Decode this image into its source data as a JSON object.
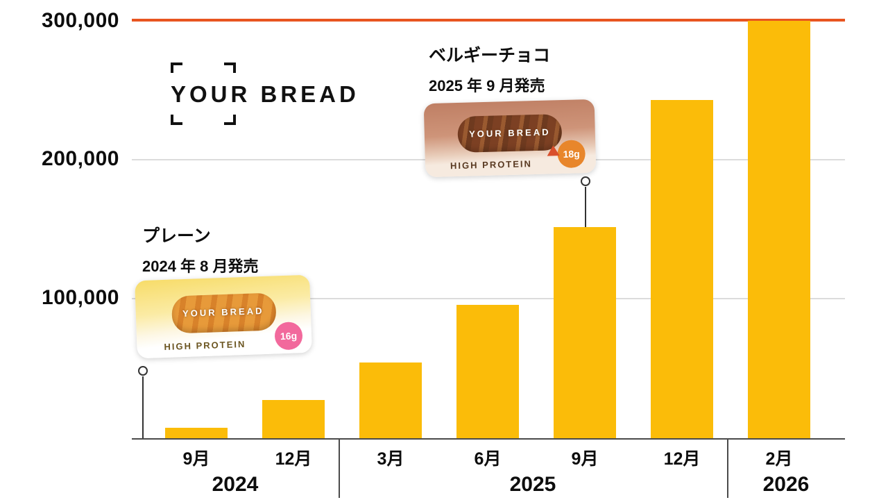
{
  "chart_data": {
    "type": "bar",
    "title": "",
    "xlabel": "",
    "ylabel": "",
    "categories": [
      "9月",
      "12月",
      "3月",
      "6月",
      "9月",
      "12月",
      "2月"
    ],
    "values": [
      8000,
      28000,
      55000,
      96000,
      152000,
      243000,
      300000
    ],
    "ylim": [
      0,
      300000
    ],
    "yticks": [
      100000,
      200000,
      300000
    ],
    "ytick_labels": [
      "100,000",
      "200,000",
      "300,000"
    ],
    "grid": "horizontal",
    "legend": "none",
    "bar_color": "#fbbc09",
    "top_line_color": "#e85520",
    "year_groups": [
      {
        "label": "2024",
        "months": [
          "9月",
          "12月"
        ]
      },
      {
        "label": "2025",
        "months": [
          "3月",
          "6月",
          "9月",
          "12月"
        ]
      },
      {
        "label": "2026",
        "months": [
          "2月"
        ]
      }
    ]
  },
  "logo": {
    "text": "YOUR BREAD"
  },
  "annotations": [
    {
      "title": "プレーン",
      "subtitle": "2024 年 8 月発売",
      "points_to": "2024-08"
    },
    {
      "title": "ベルギーチョコ",
      "subtitle": "2025 年 9 月発売",
      "points_to": "2025-09"
    }
  ],
  "products": [
    {
      "variant": "plain",
      "brand": "YOUR BREAD",
      "label": "HIGH PROTEIN",
      "badge": "16g"
    },
    {
      "variant": "choco",
      "brand": "YOUR BREAD",
      "label": "HIGH PROTEIN",
      "badge": "18g"
    }
  ]
}
